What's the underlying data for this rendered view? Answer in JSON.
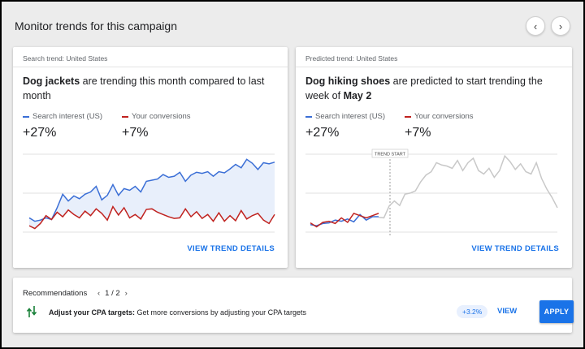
{
  "header": {
    "title": "Monitor trends for this campaign",
    "prev_icon": "chevron-left-icon",
    "next_icon": "chevron-right-icon"
  },
  "colors": {
    "search_interest": "#3b6fd6",
    "conversions": "#c0221f",
    "predicted": "#c8c8c8",
    "accent": "#1a73e8"
  },
  "cards": [
    {
      "label": "Search trend: United States",
      "title_bold": "Dog jackets",
      "title_rest": " are trending this month compared to last month",
      "legend": [
        {
          "name": "Search interest (US)",
          "value": "+27%"
        },
        {
          "name": "Your conversions",
          "value": "+7%"
        }
      ],
      "link": "VIEW TREND DETAILS"
    },
    {
      "label": "Predicted trend: United States",
      "title_bold": "Dog hiking shoes",
      "title_rest": " are predicted to start trending the week of ",
      "title_bold2": "May 2",
      "legend": [
        {
          "name": "Search interest (US)",
          "value": "+27%"
        },
        {
          "name": "Your conversions",
          "value": "+7%"
        }
      ],
      "marker": "TREND START",
      "link": "VIEW TREND DETAILS"
    }
  ],
  "chart_data": [
    {
      "type": "line",
      "series": [
        {
          "name": "Search interest (US)",
          "values": [
            34,
            28,
            30,
            34,
            31,
            52,
            76,
            64,
            73,
            68,
            76,
            80,
            90,
            66,
            74,
            93,
            74,
            86,
            83,
            90,
            80,
            99,
            101,
            103,
            111,
            106,
            108,
            115,
            99,
            110,
            115,
            113,
            116,
            108,
            116,
            114,
            121,
            129,
            123,
            138,
            131,
            120,
            132,
            130,
            133
          ]
        },
        {
          "name": "Your conversions",
          "values": [
            20,
            15,
            24,
            38,
            31,
            44,
            36,
            48,
            40,
            34,
            46,
            38,
            50,
            42,
            30,
            54,
            39,
            52,
            34,
            40,
            32,
            49,
            50,
            44,
            40,
            36,
            33,
            34,
            50,
            36,
            45,
            33,
            40,
            28,
            43,
            28,
            38,
            29,
            47,
            32,
            38,
            42,
            30,
            24,
            40
          ]
        }
      ],
      "ylim": [
        0,
        150
      ]
    },
    {
      "type": "line",
      "series": [
        {
          "name": "Search interest (US)",
          "values": [
            22,
            20,
            24,
            25,
            30,
            28,
            32,
            27,
            40,
            30,
            36,
            36
          ]
        },
        {
          "name": "Your conversions",
          "values": [
            25,
            18,
            26,
            28,
            24,
            34,
            26,
            42,
            38,
            34,
            38,
            42
          ]
        },
        {
          "name": "Predicted",
          "values": [
            35,
            34,
            55,
            64,
            56,
            76,
            78,
            82,
            98,
            110,
            116,
            132,
            128,
            126,
            122,
            136,
            118,
            132,
            140,
            118,
            112,
            122,
            106,
            118,
            144,
            134,
            120,
            130,
            116,
            112,
            132,
            104,
            85,
            70,
            52
          ]
        }
      ],
      "ylim": [
        0,
        150
      ]
    }
  ],
  "recommendations": {
    "title": "Recommendations",
    "page": "1 / 2",
    "item_bold": "Adjust your CPA targets:",
    "item_rest": " Get more conversions by adjusting your CPA targets",
    "badge": "+3.2%",
    "view": "VIEW",
    "apply": "APPLY"
  }
}
